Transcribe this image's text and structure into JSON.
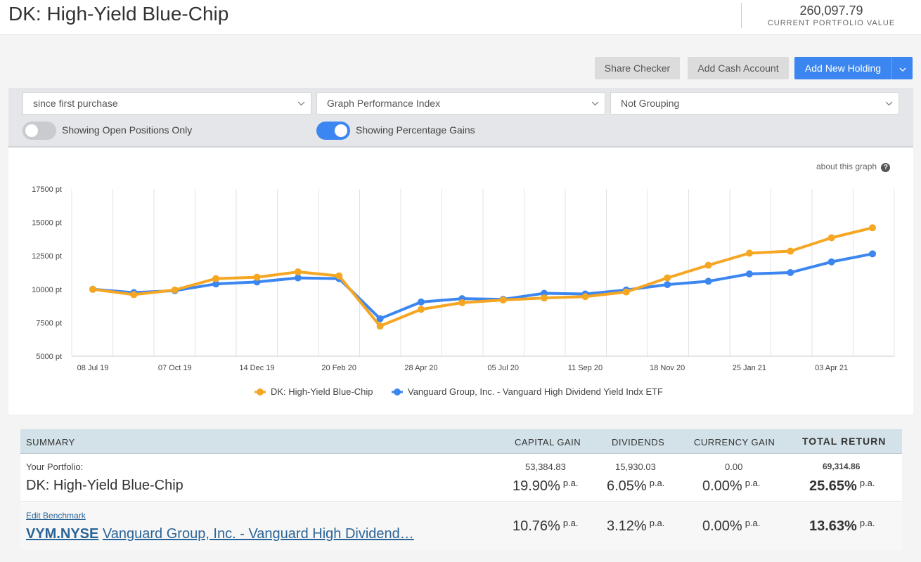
{
  "header": {
    "title": "DK: High-Yield Blue-Chip",
    "portfolio_value": "260,097.79",
    "portfolio_value_label": "CURRENT PORTFOLIO VALUE"
  },
  "toolbar": {
    "share_checker": "Share Checker",
    "add_cash_account": "Add Cash Account",
    "add_new_holding": "Add New Holding"
  },
  "filters": {
    "period": "since first purchase",
    "graph_type": "Graph Performance Index",
    "grouping": "Not Grouping",
    "toggle_open_positions": {
      "label": "Showing Open Positions Only",
      "on": false
    },
    "toggle_percentage": {
      "label": "Showing Percentage Gains",
      "on": true
    }
  },
  "about_graph": "about this graph",
  "colors": {
    "portfolio": "#f5a623",
    "benchmark": "#3b86f0",
    "accent": "#3b86f0"
  },
  "chart_data": {
    "type": "line",
    "ylim": [
      5000,
      17500
    ],
    "yticks": [
      "17500 pt",
      "15000 pt",
      "12500 pt",
      "10000 pt",
      "7500 pt",
      "5000 pt"
    ],
    "ytick_values": [
      17500,
      15000,
      12500,
      10000,
      7500,
      5000
    ],
    "xtick_labels": [
      "08 Jul 19",
      "07 Oct 19",
      "14 Dec 19",
      "20 Feb 20",
      "28 Apr 20",
      "05 Jul 20",
      "11 Sep 20",
      "18 Nov 20",
      "25 Jan 21",
      "03 Apr 21"
    ],
    "x": [
      "08 Jul 19",
      "08 Aug 19",
      "07 Oct 19",
      "07 Nov 19",
      "14 Dec 19",
      "14 Jan 20",
      "20 Feb 20",
      "23 Mar 20",
      "28 Apr 20",
      "28 May 20",
      "05 Jul 20",
      "05 Aug 20",
      "11 Sep 20",
      "11 Oct 20",
      "18 Nov 20",
      "18 Dec 20",
      "25 Jan 21",
      "25 Feb 21",
      "03 Apr 21",
      "03 May 21"
    ],
    "grid": true,
    "legend_position": "bottom",
    "series": [
      {
        "name": "DK: High-Yield Blue-Chip",
        "color": "#f5a623",
        "values": [
          10000,
          9600,
          9950,
          10800,
          10900,
          11300,
          11000,
          7250,
          8500,
          9000,
          9200,
          9350,
          9450,
          9800,
          10850,
          11800,
          12700,
          12850,
          13850,
          14600
        ]
      },
      {
        "name": "Vanguard Group, Inc. - Vanguard High Dividend Yield Indx ETF",
        "color": "#3b86f0",
        "values": [
          10000,
          9750,
          9900,
          10400,
          10550,
          10850,
          10800,
          7800,
          9050,
          9300,
          9250,
          9700,
          9650,
          9950,
          10350,
          10600,
          11150,
          11250,
          12050,
          12650
        ]
      }
    ]
  },
  "summary": {
    "headers": {
      "summary": "SUMMARY",
      "capital_gain": "CAPITAL GAIN",
      "dividends": "DIVIDENDS",
      "currency_gain": "CURRENCY GAIN",
      "total_return": "TOTAL RETURN"
    },
    "portfolio": {
      "label": "Your Portfolio:",
      "name": "DK: High-Yield Blue-Chip",
      "capital_gain_value": "53,384.83",
      "dividends_value": "15,930.03",
      "currency_gain_value": "0.00",
      "total_return_value": "69,314.86",
      "capital_gain_pct": "19.90%",
      "dividends_pct": "6.05%",
      "currency_gain_pct": "0.00%",
      "total_return_pct": "25.65%",
      "pa": "p.a."
    },
    "benchmark": {
      "edit_label": "Edit Benchmark",
      "ticker": "VYM.NYSE",
      "name": "Vanguard Group, Inc. - Vanguard High Dividend…",
      "capital_gain_pct": "10.76%",
      "dividends_pct": "3.12%",
      "currency_gain_pct": "0.00%",
      "total_return_pct": "13.63%",
      "pa": "p.a."
    }
  }
}
